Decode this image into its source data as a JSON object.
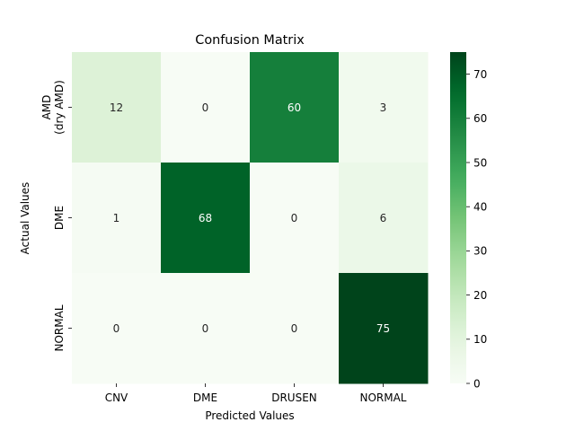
{
  "chart_data": {
    "type": "heatmap",
    "title": "Confusion Matrix",
    "xlabel": "Predicted Values",
    "ylabel": "Actual Values",
    "x_categories": [
      "CNV",
      "DME",
      "DRUSEN",
      "NORMAL"
    ],
    "y_categories": [
      [
        "AMD",
        "(dry AMD)"
      ],
      [
        "DME"
      ],
      [
        "NORMAL"
      ]
    ],
    "values": [
      [
        12,
        0,
        60,
        3
      ],
      [
        1,
        68,
        0,
        6
      ],
      [
        0,
        0,
        0,
        75
      ]
    ],
    "colorbar": {
      "colormap": "Greens",
      "range": [
        0,
        75
      ],
      "ticks": [
        "0",
        "10",
        "20",
        "30",
        "40",
        "50",
        "60",
        "70"
      ]
    }
  }
}
